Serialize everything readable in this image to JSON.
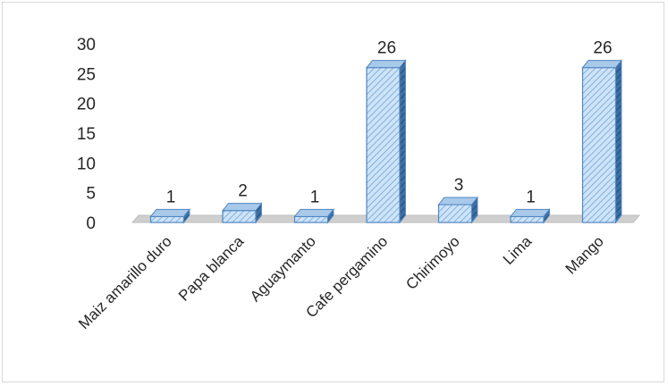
{
  "chart_data": {
    "type": "bar",
    "style": "3d-column",
    "categories": [
      "Maiz amarillo duro",
      "Papa blanca",
      "Aguaymanto",
      "Cafe pergamino",
      "Chirimoyo",
      "Lima",
      "Mango"
    ],
    "values": [
      1,
      2,
      1,
      26,
      3,
      1,
      26
    ],
    "ylim": [
      0,
      30
    ],
    "yticks": [
      "0",
      "5",
      "10",
      "15",
      "20",
      "25",
      "30"
    ],
    "data_labels": [
      "1",
      "2",
      "1",
      "26",
      "3",
      "1",
      "26"
    ],
    "grid": false,
    "legend": "none",
    "colors": {
      "bar_fill": "#cfe3f7",
      "bar_hatch": "#7fb2e0",
      "bar_edge": "#4f86c0",
      "bar_side": "#2f5f91",
      "bar_top": "#a9c9ea",
      "floor": "#cfcfcf",
      "text": "#262626"
    }
  }
}
